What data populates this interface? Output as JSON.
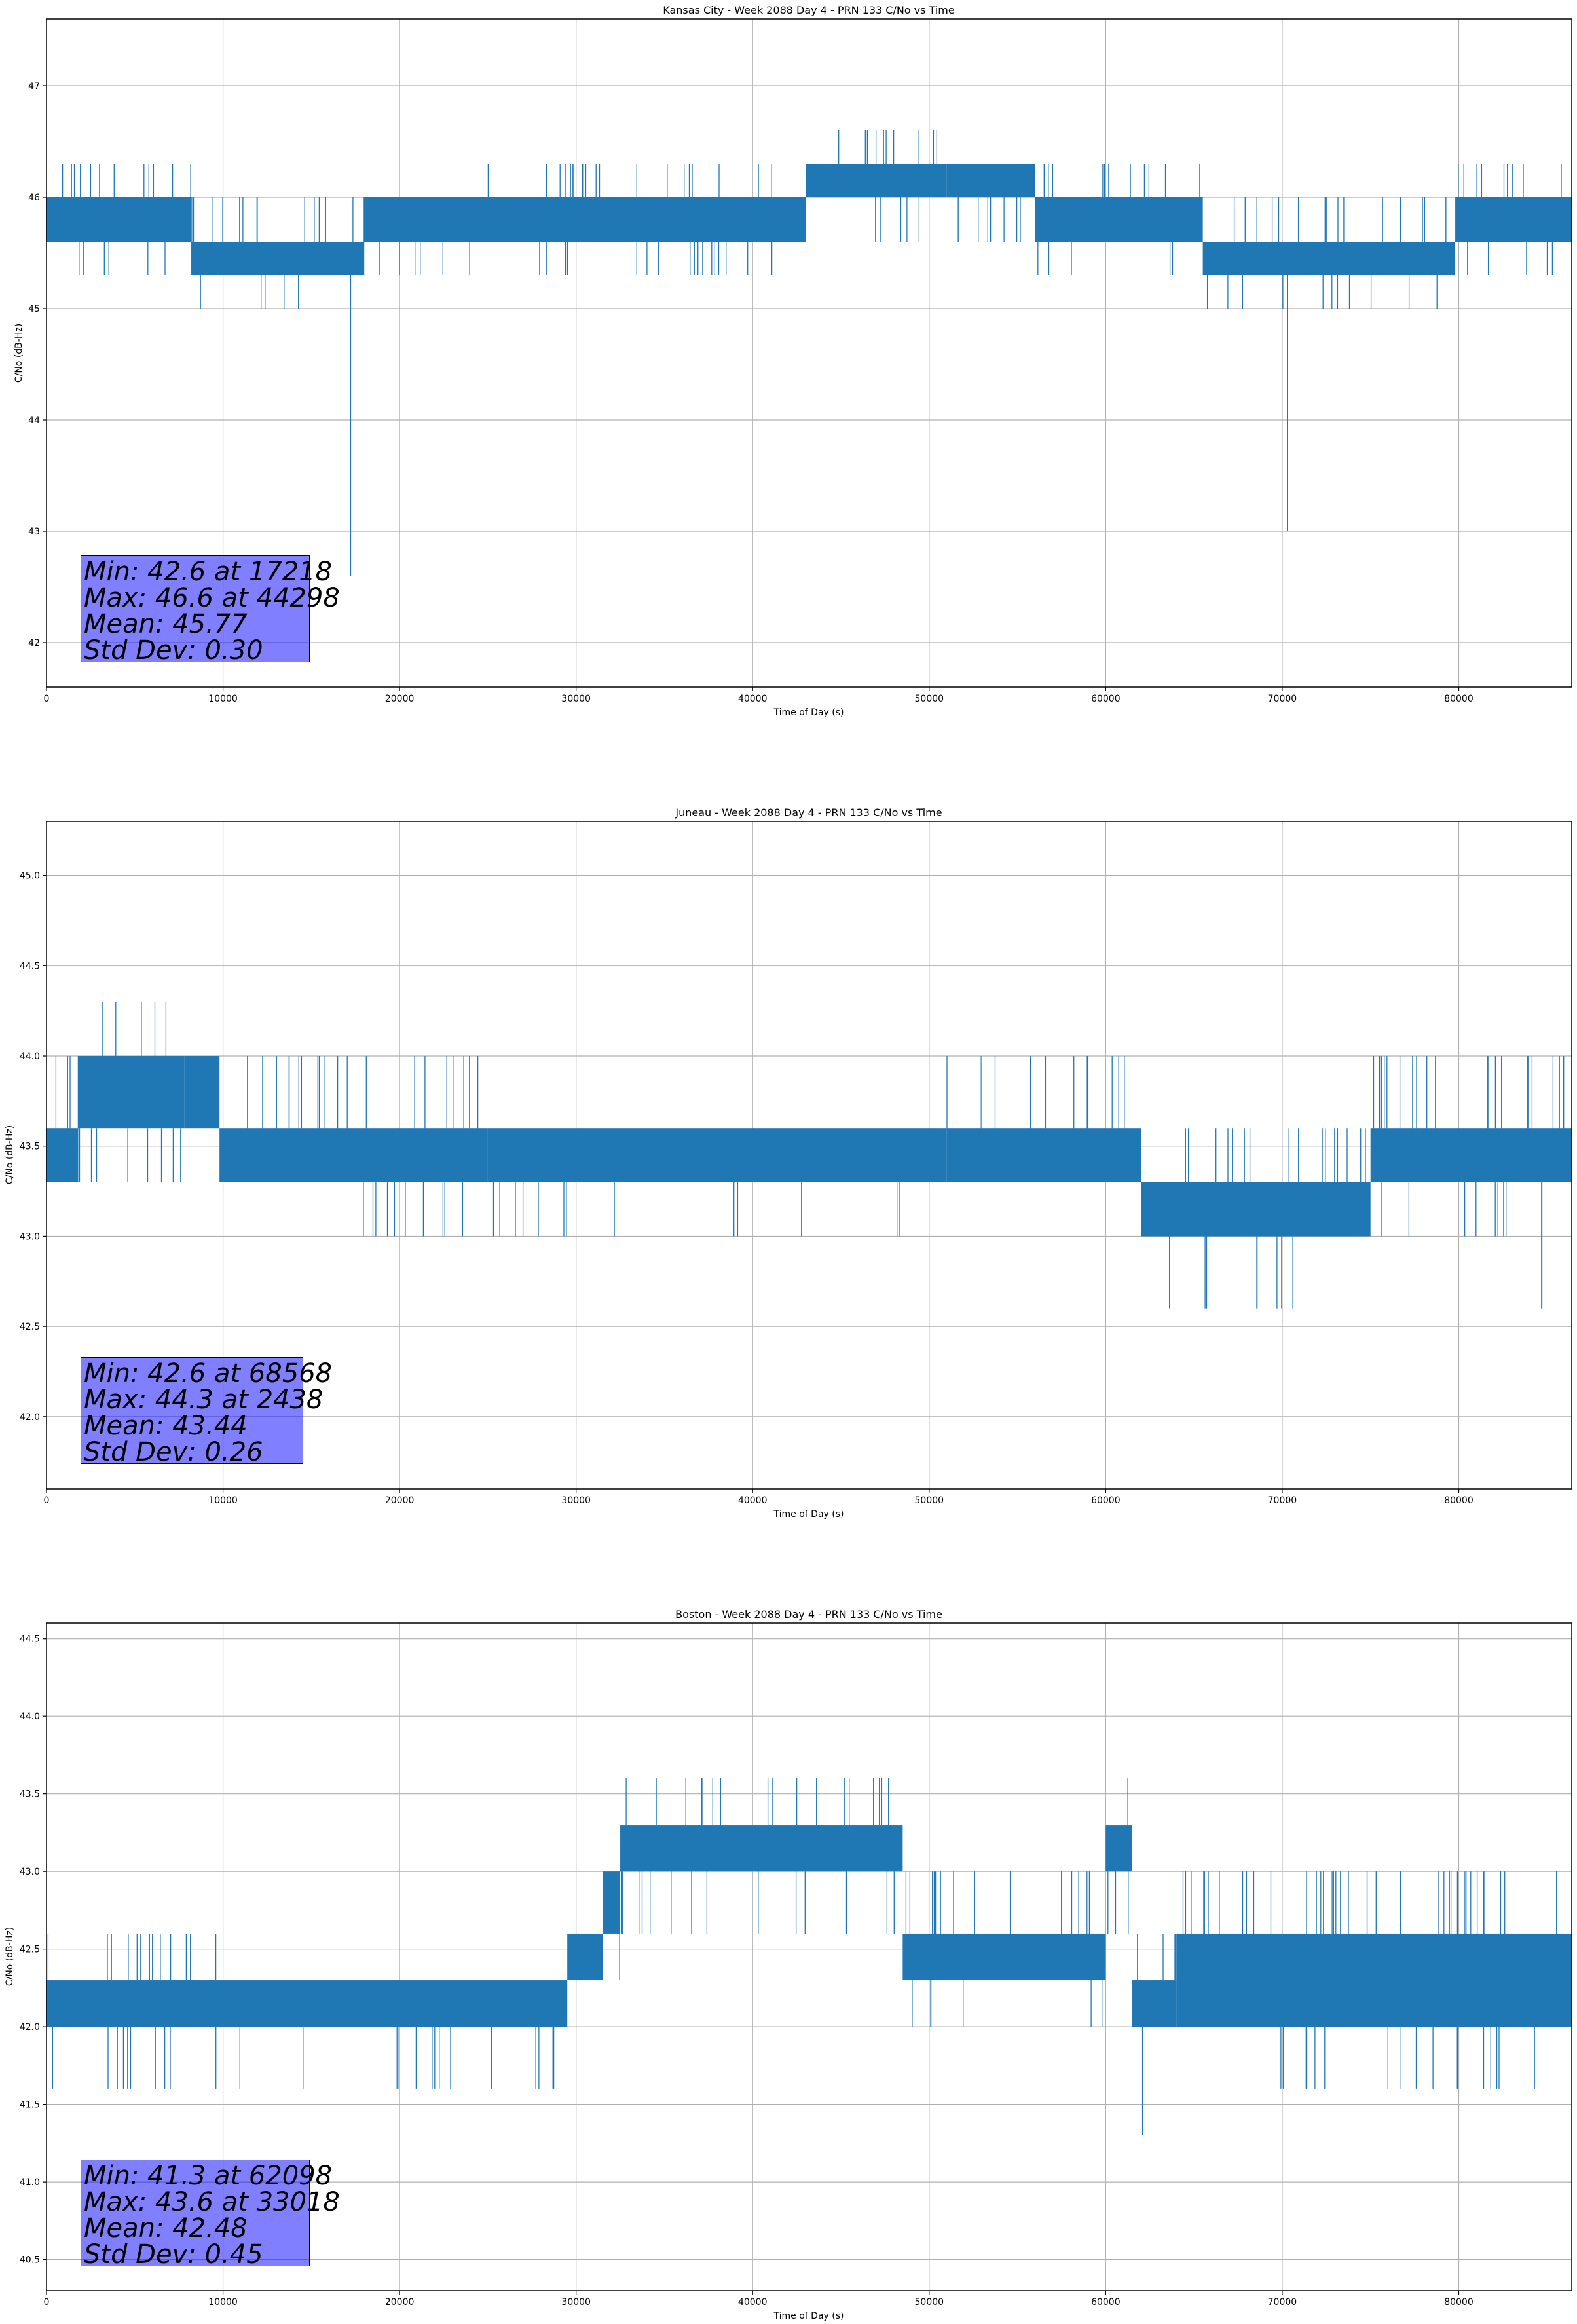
{
  "figure": {
    "line_color": "#1f77b4",
    "stats_box_color": "#8080ff"
  },
  "chart_data": [
    {
      "type": "line",
      "title": "Kansas City - Week 2088 Day 4 - PRN 133 C/No vs Time",
      "xlabel": "Time of Day (s)",
      "ylabel": "C/No (dB-Hz)",
      "xlim": [
        0,
        86400
      ],
      "ylim": [
        41.6,
        47.6
      ],
      "xticks": [
        0,
        10000,
        20000,
        30000,
        40000,
        50000,
        60000,
        70000,
        80000
      ],
      "xtick_labels": [
        "0",
        "10000",
        "20000",
        "30000",
        "40000",
        "50000",
        "60000",
        "70000",
        "80000"
      ],
      "yticks": [
        42,
        43,
        44,
        45,
        46,
        47
      ],
      "ytick_labels": [
        "42",
        "43",
        "44",
        "45",
        "46",
        "47"
      ],
      "grid": true,
      "stats": [
        "Min: 42.6 at 17218",
        "Max: 46.6 at 44298",
        "Mean: 45.77",
        "Std Dev: 0.30"
      ],
      "band_segments": [
        {
          "x": [
            0,
            8200
          ],
          "low": 45.6,
          "high": 46.0,
          "spikes_high": [
            46.3
          ],
          "spikes_low": [
            45.3
          ]
        },
        {
          "x": [
            8200,
            14300
          ],
          "low": 45.3,
          "high": 45.6,
          "spikes_high": [
            46.0
          ],
          "spikes_low": [
            45.0
          ]
        },
        {
          "x": [
            14300,
            18000
          ],
          "low": 45.3,
          "high": 45.6,
          "spikes_high": [
            46.0
          ],
          "spikes_low": [
            45.3
          ]
        },
        {
          "x": [
            18000,
            24500
          ],
          "low": 45.6,
          "high": 46.0,
          "spikes_high": [
            46.0
          ],
          "spikes_low": [
            45.3
          ]
        },
        {
          "x": [
            24500,
            41500
          ],
          "low": 45.6,
          "high": 46.0,
          "spikes_high": [
            46.3
          ],
          "spikes_low": [
            45.3
          ]
        },
        {
          "x": [
            41500,
            43000
          ],
          "low": 45.6,
          "high": 46.0,
          "spikes_high": [
            46.3
          ],
          "spikes_low": [
            45.6
          ]
        },
        {
          "x": [
            43000,
            51000
          ],
          "low": 46.0,
          "high": 46.3,
          "spikes_high": [
            46.6
          ],
          "spikes_low": [
            45.6
          ]
        },
        {
          "x": [
            51000,
            56000
          ],
          "low": 46.0,
          "high": 46.3,
          "spikes_high": [
            46.3
          ],
          "spikes_low": [
            45.6
          ]
        },
        {
          "x": [
            56000,
            65500
          ],
          "low": 45.6,
          "high": 46.0,
          "spikes_high": [
            46.3
          ],
          "spikes_low": [
            45.3
          ]
        },
        {
          "x": [
            65500,
            79800
          ],
          "low": 45.3,
          "high": 45.6,
          "spikes_high": [
            46.0
          ],
          "spikes_low": [
            45.0
          ]
        },
        {
          "x": [
            79800,
            86400
          ],
          "low": 45.6,
          "high": 46.0,
          "spikes_high": [
            46.3
          ],
          "spikes_low": [
            45.3
          ]
        }
      ],
      "dips": [
        {
          "x": 17218,
          "y": 42.6
        },
        {
          "x": 70300,
          "y": 43.0
        }
      ]
    },
    {
      "type": "line",
      "title": "Juneau - Week 2088 Day 4 - PRN 133 C/No vs Time",
      "xlabel": "Time of Day (s)",
      "ylabel": "C/No (dB-Hz)",
      "xlim": [
        0,
        86400
      ],
      "ylim": [
        41.6,
        45.3
      ],
      "xticks": [
        0,
        10000,
        20000,
        30000,
        40000,
        50000,
        60000,
        70000,
        80000
      ],
      "xtick_labels": [
        "0",
        "10000",
        "20000",
        "30000",
        "40000",
        "50000",
        "60000",
        "70000",
        "80000"
      ],
      "yticks": [
        42.0,
        42.5,
        43.0,
        43.5,
        44.0,
        44.5,
        45.0
      ],
      "ytick_labels": [
        "42.0",
        "42.5",
        "43.0",
        "43.5",
        "44.0",
        "44.5",
        "45.0"
      ],
      "grid": true,
      "stats": [
        "Min: 42.6 at 68568",
        "Max: 44.3 at 2438",
        "Mean: 43.44",
        "Std Dev: 0.26"
      ],
      "band_segments": [
        {
          "x": [
            0,
            1800
          ],
          "low": 43.3,
          "high": 43.6,
          "spikes_high": [
            44.0
          ],
          "spikes_low": [
            43.3
          ]
        },
        {
          "x": [
            1800,
            7800
          ],
          "low": 43.6,
          "high": 44.0,
          "spikes_high": [
            44.3
          ],
          "spikes_low": [
            43.3
          ]
        },
        {
          "x": [
            7800,
            9800
          ],
          "low": 43.6,
          "high": 44.0,
          "spikes_high": [
            44.0
          ],
          "spikes_low": [
            43.6
          ]
        },
        {
          "x": [
            9800,
            16000
          ],
          "low": 43.3,
          "high": 43.6,
          "spikes_high": [
            44.0
          ],
          "spikes_low": [
            43.3
          ]
        },
        {
          "x": [
            16000,
            25000
          ],
          "low": 43.3,
          "high": 43.6,
          "spikes_high": [
            44.0
          ],
          "spikes_low": [
            43.0
          ]
        },
        {
          "x": [
            25000,
            51000
          ],
          "low": 43.3,
          "high": 43.6,
          "spikes_high": [
            43.6
          ],
          "spikes_low": [
            43.0
          ]
        },
        {
          "x": [
            51000,
            62000
          ],
          "low": 43.3,
          "high": 43.6,
          "spikes_high": [
            44.0
          ],
          "spikes_low": [
            43.3
          ]
        },
        {
          "x": [
            62000,
            75000
          ],
          "low": 43.0,
          "high": 43.3,
          "spikes_high": [
            43.6
          ],
          "spikes_low": [
            42.6
          ]
        },
        {
          "x": [
            75000,
            86400
          ],
          "low": 43.3,
          "high": 43.6,
          "spikes_high": [
            44.0
          ],
          "spikes_low": [
            43.0
          ]
        }
      ],
      "dips": [
        {
          "x": 68568,
          "y": 42.6
        },
        {
          "x": 84700,
          "y": 42.6
        }
      ]
    },
    {
      "type": "line",
      "title": "Boston - Week 2088 Day 4 - PRN 133 C/No vs Time",
      "xlabel": "Time of Day (s)",
      "ylabel": "C/No (dB-Hz)",
      "xlim": [
        0,
        86400
      ],
      "ylim": [
        40.3,
        44.6
      ],
      "xticks": [
        0,
        10000,
        20000,
        30000,
        40000,
        50000,
        60000,
        70000,
        80000
      ],
      "xtick_labels": [
        "0",
        "10000",
        "20000",
        "30000",
        "40000",
        "50000",
        "60000",
        "70000",
        "80000"
      ],
      "yticks": [
        40.5,
        41.0,
        41.5,
        42.0,
        42.5,
        43.0,
        43.5,
        44.0,
        44.5
      ],
      "ytick_labels": [
        "40.5",
        "41.0",
        "41.5",
        "42.0",
        "42.5",
        "43.0",
        "43.5",
        "44.0",
        "44.5"
      ],
      "grid": true,
      "stats": [
        "Min: 41.3 at 62098",
        "Max: 43.6 at 33018",
        "Mean: 42.48",
        "Std Dev: 0.45"
      ],
      "band_segments": [
        {
          "x": [
            0,
            10500
          ],
          "low": 42.0,
          "high": 42.3,
          "spikes_high": [
            42.6
          ],
          "spikes_low": [
            41.6
          ]
        },
        {
          "x": [
            10500,
            16000
          ],
          "low": 42.0,
          "high": 42.3,
          "spikes_high": [
            42.3
          ],
          "spikes_low": [
            41.6
          ]
        },
        {
          "x": [
            16000,
            29500
          ],
          "low": 42.0,
          "high": 42.3,
          "spikes_high": [
            42.3
          ],
          "spikes_low": [
            41.6
          ]
        },
        {
          "x": [
            29500,
            31500
          ],
          "low": 42.3,
          "high": 42.6,
          "spikes_high": [
            42.6
          ],
          "spikes_low": [
            42.0
          ]
        },
        {
          "x": [
            31500,
            32500
          ],
          "low": 42.6,
          "high": 43.0,
          "spikes_high": [
            43.0
          ],
          "spikes_low": [
            42.3
          ]
        },
        {
          "x": [
            32500,
            48500
          ],
          "low": 43.0,
          "high": 43.3,
          "spikes_high": [
            43.6
          ],
          "spikes_low": [
            42.6
          ]
        },
        {
          "x": [
            48500,
            60000
          ],
          "low": 42.3,
          "high": 42.6,
          "spikes_high": [
            43.0
          ],
          "spikes_low": [
            42.0
          ]
        },
        {
          "x": [
            60000,
            61500
          ],
          "low": 43.0,
          "high": 43.3,
          "spikes_high": [
            43.6
          ],
          "spikes_low": [
            42.6
          ]
        },
        {
          "x": [
            61500,
            64000
          ],
          "low": 42.0,
          "high": 42.3,
          "spikes_high": [
            42.6
          ],
          "spikes_low": [
            41.6
          ]
        },
        {
          "x": [
            64000,
            86400
          ],
          "low": 42.0,
          "high": 42.6,
          "spikes_high": [
            43.0
          ],
          "spikes_low": [
            41.6
          ]
        }
      ],
      "dips": [
        {
          "x": 62098,
          "y": 41.3
        }
      ]
    }
  ]
}
